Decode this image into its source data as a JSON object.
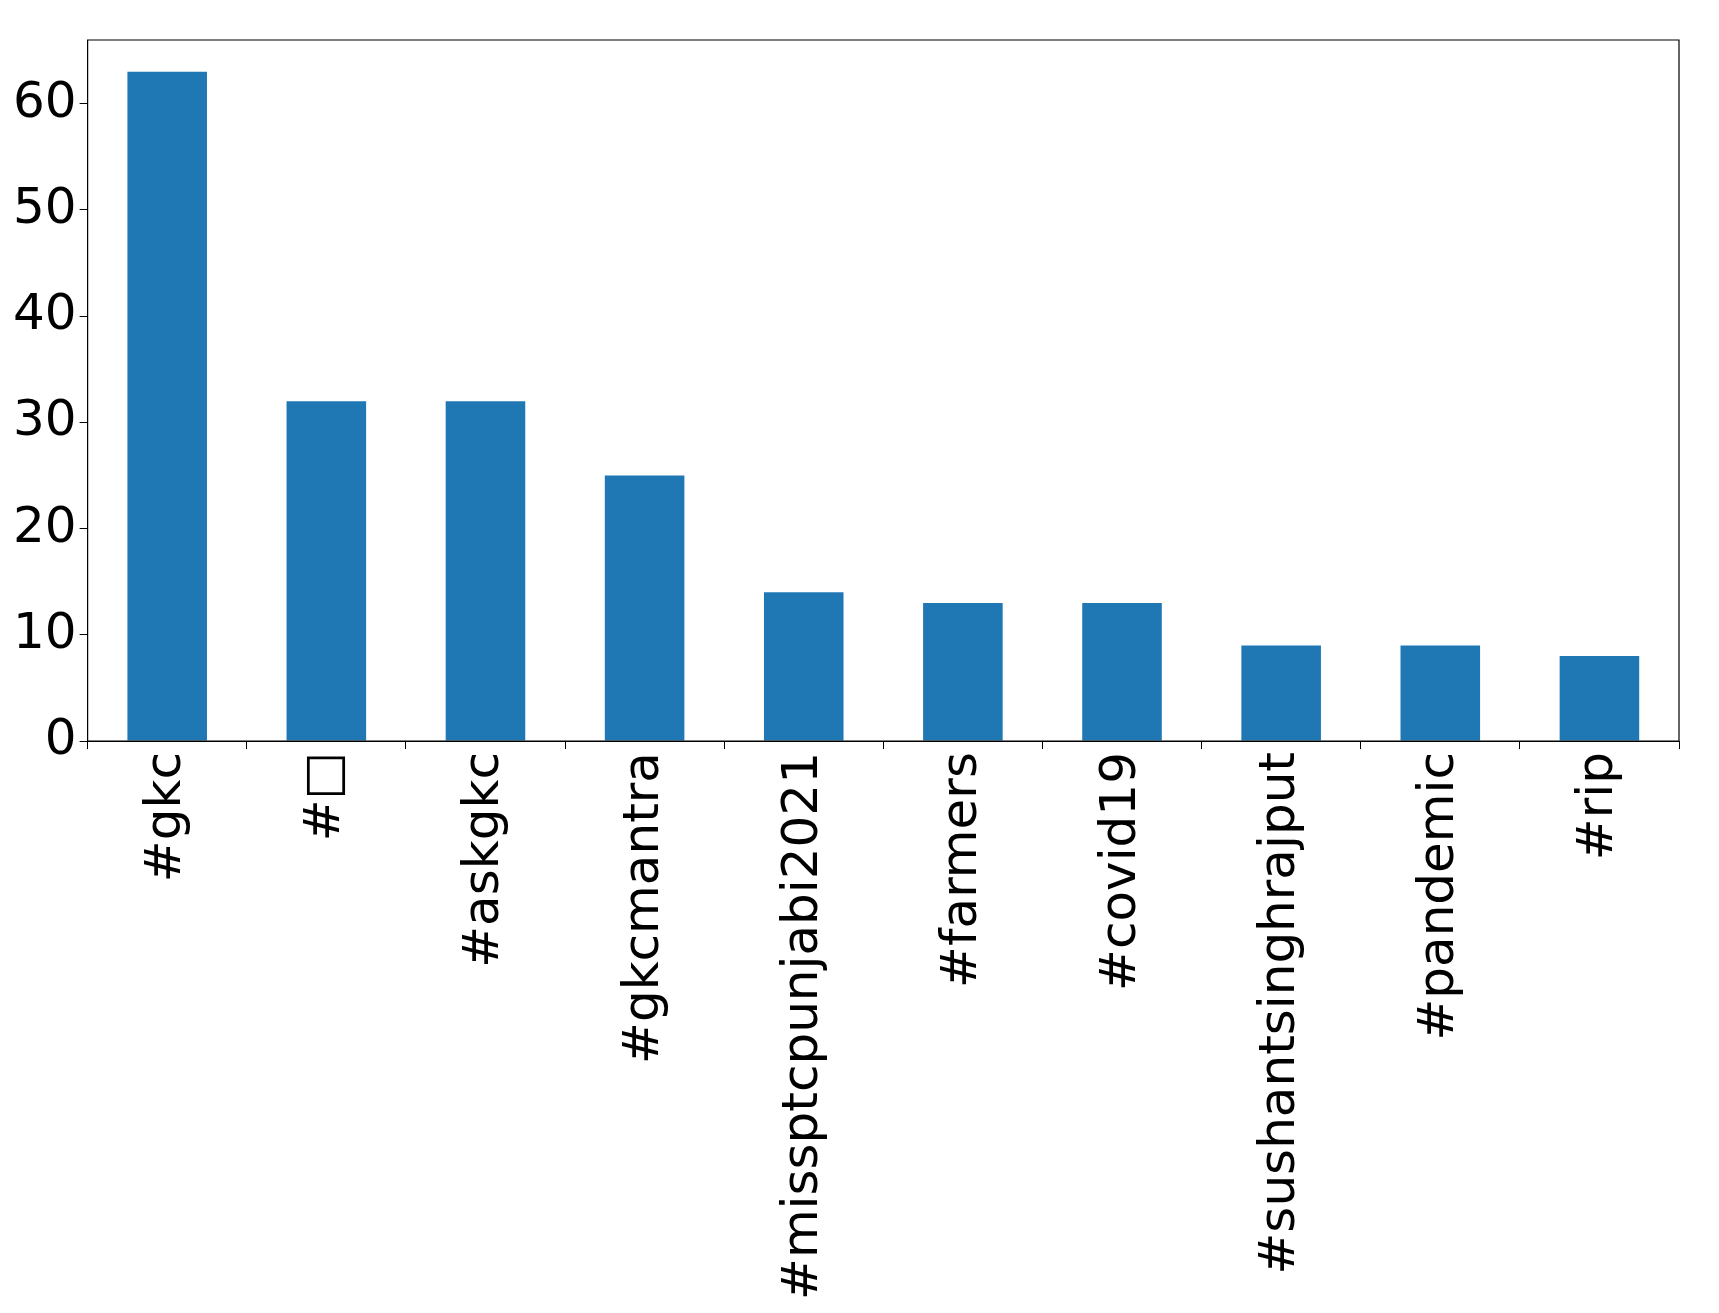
{
  "chart_data": {
    "type": "bar",
    "categories": [
      "#gkc",
      "#□",
      "#askgkc",
      "#gkcmantra",
      "#missptcpunjabi2021",
      "#farmers",
      "#covid19",
      "#sushantsinghrajput",
      "#pandemic",
      "#rip"
    ],
    "values": [
      63,
      32,
      32,
      25,
      14,
      13,
      13,
      9,
      9,
      8
    ],
    "color": "#1f77b4",
    "ylim": [
      0,
      66
    ],
    "yticks": [
      0,
      10,
      20,
      30,
      40,
      50,
      60
    ],
    "grid": false,
    "legend": false
  }
}
